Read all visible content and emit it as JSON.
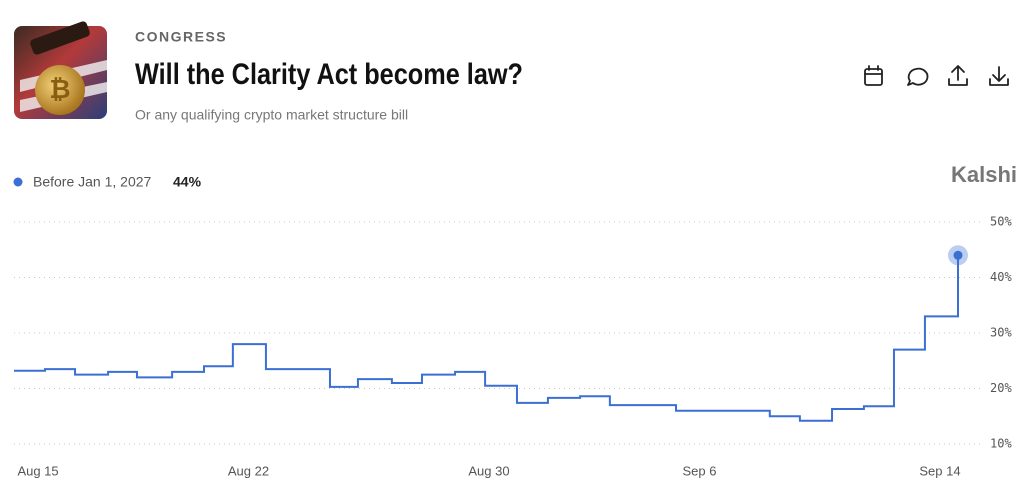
{
  "header": {
    "category": "CONGRESS",
    "title": "Will the Clarity Act become law?",
    "subtitle": "Or any qualifying crypto market structure bill",
    "brand": "Kalshi"
  },
  "chart_data": {
    "type": "line",
    "step": true,
    "series": [
      {
        "name": "Before Jan 1, 2027",
        "color": "#3b6fd4",
        "legend_value": {
          "value": 44,
          "label": "44%"
        },
        "x": [
          -0.8,
          0.23,
          1.23,
          2.33,
          3.29,
          4.46,
          5.52,
          6.48,
          7.58,
          9.71,
          10.64,
          11.77,
          12.77,
          13.87,
          14.87,
          15.93,
          16.96,
          18.03,
          19.02,
          21.22,
          24.34,
          25.34,
          26.41,
          27.47,
          28.47,
          29.5,
          30.6
        ],
        "values": [
          23.2,
          23.5,
          22.5,
          23,
          22,
          23,
          24,
          28,
          23.5,
          20.3,
          21.7,
          21,
          22.5,
          23,
          20.5,
          17.4,
          18.3,
          18.6,
          17,
          16,
          15,
          14.2,
          16.3,
          16.8,
          27,
          33,
          44
        ]
      }
    ],
    "xlim": [
      -0.8,
      30.6
    ],
    "xticks": [
      {
        "value": 0,
        "label": "Aug 15"
      },
      {
        "value": 7,
        "label": "Aug 22"
      },
      {
        "value": 15,
        "label": "Aug 30"
      },
      {
        "value": 22,
        "label": "Sep 6"
      },
      {
        "value": 30,
        "label": "Sep 14"
      }
    ],
    "ylim": [
      10,
      50
    ],
    "yticks": [
      {
        "value": 10,
        "label": "10%"
      },
      {
        "value": 20,
        "label": "20%"
      },
      {
        "value": 30,
        "label": "30%"
      },
      {
        "value": 40,
        "label": "40%"
      },
      {
        "value": 50,
        "label": "50%"
      }
    ],
    "grid": true
  }
}
